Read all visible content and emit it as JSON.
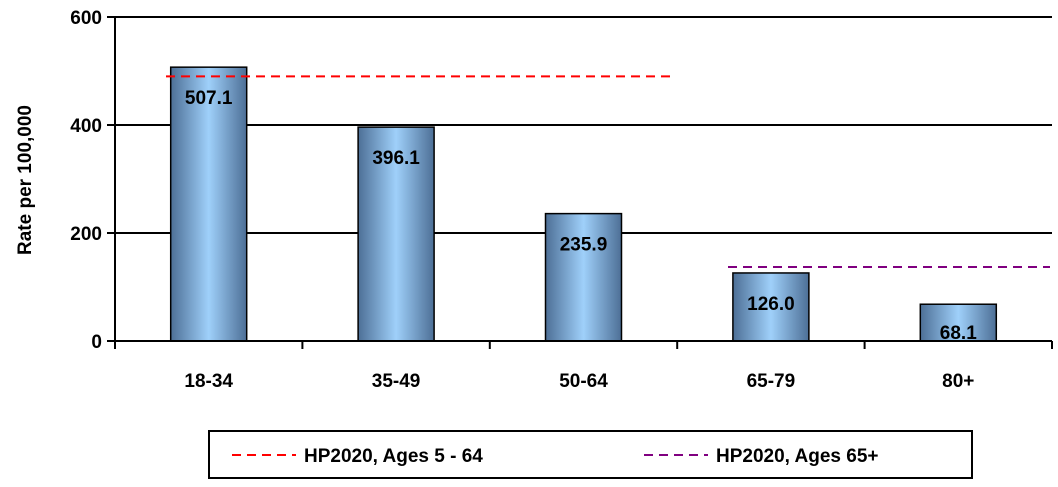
{
  "chart_data": {
    "type": "bar",
    "categories": [
      "18-34",
      "35-49",
      "50-64",
      "65-79",
      "80+"
    ],
    "values": [
      507.1,
      396.1,
      235.9,
      126.0,
      68.1
    ],
    "value_labels": [
      "507.1",
      "396.1",
      "235.9",
      "126.0",
      "68.1"
    ],
    "title": "",
    "xlabel": "",
    "ylabel": "Rate per 100,000",
    "ylim": [
      0,
      600
    ],
    "yticks": [
      0,
      200,
      400,
      600
    ],
    "ytick_labels": [
      "0",
      "200",
      "400",
      "600"
    ],
    "grid": "horizontal",
    "bar_color": "#8ec3ee",
    "reference_lines": [
      {
        "name": "HP2020, Ages 5 - 64",
        "value": 490,
        "from_category": "18-34",
        "to_category": "50-64",
        "color": "#ff0000",
        "style": "dashed"
      },
      {
        "name": "HP2020, Ages 65+",
        "value": 137,
        "from_category": "65-79",
        "to_category": "80+",
        "color": "#800080",
        "style": "dashed"
      }
    ],
    "legend_position": "bottom"
  }
}
